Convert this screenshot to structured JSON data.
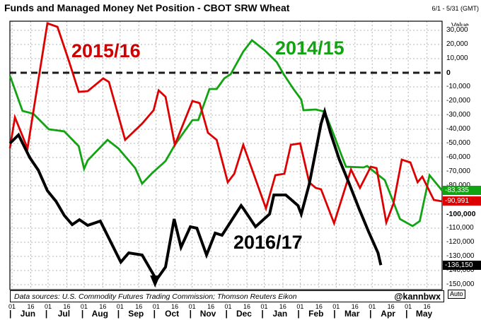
{
  "header": {
    "title": "Funds and Managed Money Net Position - CBOT SRW Wheat",
    "range_label": "6/1 - 5/31 (GMT)"
  },
  "axis": {
    "value_label": "Value",
    "auto_label": "Auto"
  },
  "footer": {
    "sources": "Data sources: U.S. Commodity Futures Trading Commission; Thomson Reuters Eikon",
    "handle": "@kannbwx"
  },
  "colors": {
    "red": "#dd0000",
    "green": "#12a312",
    "black": "#000000",
    "grid": "#b4b4b4",
    "zero_line": "#1a1a1a"
  },
  "chart_data": {
    "type": "line",
    "title": "Funds and Managed Money Net Position - CBOT SRW Wheat",
    "xlabel": "",
    "ylabel": "Value",
    "x_axis": {
      "months": [
        "Jun",
        "Jul",
        "Aug",
        "Sep",
        "Oct",
        "Nov",
        "Dec",
        "Jan",
        "Feb",
        "Mar",
        "Apr",
        "May"
      ],
      "tick_days": [
        "01",
        "16"
      ],
      "note": "x expressed in months since Jun 1 (0 to 12)"
    },
    "y_axis": {
      "min": -150000,
      "max": 30000,
      "step": 10000,
      "bold_ticks": [
        0,
        -100000
      ],
      "grid": true
    },
    "annotations": {
      "low_marker": {
        "symbol": "triangle-down",
        "x_month": 4.03
      }
    },
    "series": [
      {
        "name": "2015/16",
        "color": "#dd0000",
        "last_value": -90991,
        "last_value_label": "-90,991",
        "points": [
          [
            0.0,
            -53500
          ],
          [
            0.14,
            -31500
          ],
          [
            0.49,
            -53500
          ],
          [
            1.04,
            35000
          ],
          [
            1.32,
            32500
          ],
          [
            1.63,
            9000
          ],
          [
            1.91,
            -13500
          ],
          [
            2.16,
            -13000
          ],
          [
            2.59,
            -4000
          ],
          [
            2.75,
            -6500
          ],
          [
            3.2,
            -47500
          ],
          [
            3.67,
            -36000
          ],
          [
            3.99,
            -26500
          ],
          [
            4.13,
            -12500
          ],
          [
            4.32,
            -17000
          ],
          [
            4.58,
            -51000
          ],
          [
            5.07,
            -20000
          ],
          [
            5.27,
            -21500
          ],
          [
            5.5,
            -42500
          ],
          [
            5.74,
            -47500
          ],
          [
            6.05,
            -77500
          ],
          [
            6.23,
            -71500
          ],
          [
            6.48,
            -51000
          ],
          [
            7.11,
            -96000
          ],
          [
            7.37,
            -72500
          ],
          [
            7.62,
            -71500
          ],
          [
            7.8,
            -51000
          ],
          [
            8.06,
            -50000
          ],
          [
            8.31,
            -77500
          ],
          [
            8.49,
            -81500
          ],
          [
            8.64,
            -82500
          ],
          [
            9.0,
            -106500
          ],
          [
            9.47,
            -68500
          ],
          [
            9.72,
            -81500
          ],
          [
            10.02,
            -66500
          ],
          [
            10.18,
            -67500
          ],
          [
            10.45,
            -106000
          ],
          [
            10.65,
            -92500
          ],
          [
            10.88,
            -61500
          ],
          [
            11.12,
            -63500
          ],
          [
            11.32,
            -77500
          ],
          [
            11.45,
            -73500
          ],
          [
            11.77,
            -90000
          ],
          [
            12.0,
            -90991
          ]
        ]
      },
      {
        "name": "2014/15",
        "color": "#12a312",
        "last_value": -83335,
        "last_value_label": "-83,335",
        "points": [
          [
            0.0,
            -2000
          ],
          [
            0.35,
            -27000
          ],
          [
            0.65,
            -29000
          ],
          [
            1.08,
            -40000
          ],
          [
            1.51,
            -41500
          ],
          [
            1.91,
            -52000
          ],
          [
            2.06,
            -68000
          ],
          [
            2.16,
            -62000
          ],
          [
            2.71,
            -47500
          ],
          [
            3.01,
            -53500
          ],
          [
            3.48,
            -67500
          ],
          [
            3.67,
            -78500
          ],
          [
            3.93,
            -71500
          ],
          [
            4.32,
            -62500
          ],
          [
            4.58,
            -51000
          ],
          [
            5.07,
            -33500
          ],
          [
            5.23,
            -33500
          ],
          [
            5.54,
            -11500
          ],
          [
            5.74,
            -11500
          ],
          [
            5.95,
            -4000
          ],
          [
            6.13,
            -1000
          ],
          [
            6.48,
            15000
          ],
          [
            6.72,
            23000
          ],
          [
            7.07,
            16000
          ],
          [
            7.41,
            7500
          ],
          [
            7.6,
            -1000
          ],
          [
            7.86,
            -11000
          ],
          [
            8.09,
            -19000
          ],
          [
            8.15,
            -26500
          ],
          [
            8.49,
            -26000
          ],
          [
            8.74,
            -27500
          ],
          [
            9.0,
            -44500
          ],
          [
            9.23,
            -60000
          ],
          [
            9.33,
            -66500
          ],
          [
            9.82,
            -67000
          ],
          [
            9.92,
            -66000
          ],
          [
            10.16,
            -71000
          ],
          [
            10.41,
            -76000
          ],
          [
            10.61,
            -89000
          ],
          [
            10.83,
            -103500
          ],
          [
            11.18,
            -108500
          ],
          [
            11.38,
            -105000
          ],
          [
            11.65,
            -72500
          ],
          [
            12.0,
            -83335
          ]
        ]
      },
      {
        "name": "2016/17",
        "color": "#000000",
        "last_value": -136150,
        "last_value_label": "-136,150",
        "points": [
          [
            0.0,
            -50000
          ],
          [
            0.24,
            -44000
          ],
          [
            0.55,
            -60000
          ],
          [
            0.79,
            -69000
          ],
          [
            1.04,
            -83500
          ],
          [
            1.28,
            -91000
          ],
          [
            1.51,
            -101000
          ],
          [
            1.73,
            -107500
          ],
          [
            1.93,
            -104000
          ],
          [
            2.16,
            -108000
          ],
          [
            2.51,
            -105000
          ],
          [
            3.08,
            -134000
          ],
          [
            3.3,
            -127500
          ],
          [
            3.67,
            -129000
          ],
          [
            4.07,
            -146500
          ],
          [
            4.32,
            -137500
          ],
          [
            4.56,
            -103500
          ],
          [
            4.75,
            -123500
          ],
          [
            5.01,
            -109000
          ],
          [
            5.19,
            -110000
          ],
          [
            5.46,
            -129000
          ],
          [
            5.7,
            -113500
          ],
          [
            5.89,
            -115000
          ],
          [
            6.42,
            -94000
          ],
          [
            6.48,
            -96000
          ],
          [
            6.82,
            -109000
          ],
          [
            7.21,
            -100000
          ],
          [
            7.33,
            -86500
          ],
          [
            7.66,
            -86500
          ],
          [
            8.0,
            -94000
          ],
          [
            8.09,
            -100000
          ],
          [
            8.31,
            -79000
          ],
          [
            8.45,
            -61000
          ],
          [
            8.64,
            -36000
          ],
          [
            8.74,
            -27500
          ],
          [
            8.9,
            -42500
          ],
          [
            9.14,
            -61000
          ],
          [
            9.43,
            -79000
          ],
          [
            9.69,
            -96000
          ],
          [
            9.96,
            -112500
          ],
          [
            10.22,
            -127500
          ],
          [
            10.3,
            -136150
          ]
        ]
      }
    ]
  }
}
